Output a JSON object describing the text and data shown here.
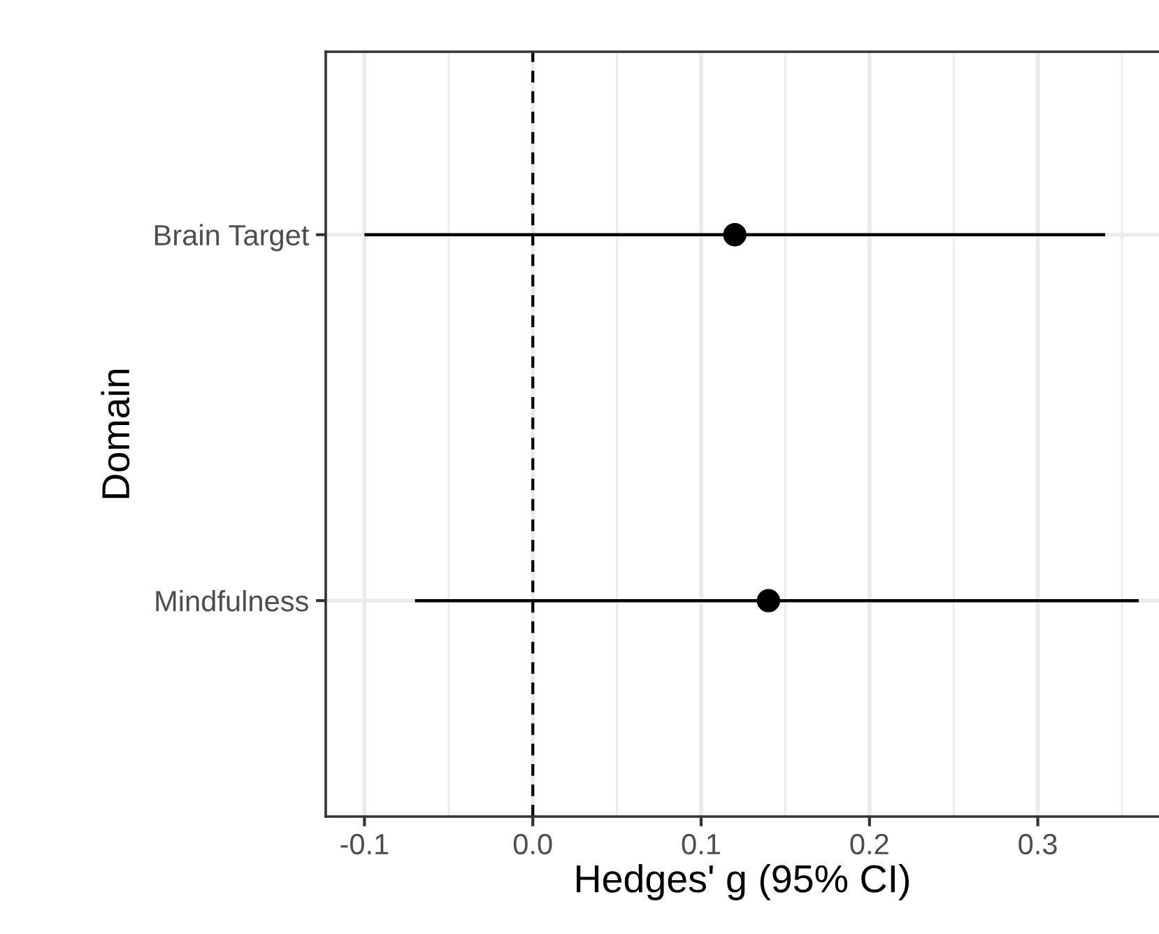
{
  "chart_data": {
    "type": "scatter",
    "orientation": "horizontal",
    "categories": [
      "Brain Target",
      "Mindfulness"
    ],
    "values": [
      0.12,
      0.14
    ],
    "errors": [
      [
        -0.1,
        0.34
      ],
      [
        -0.07,
        0.36
      ]
    ],
    "color": "#000000",
    "marker": "circle",
    "xlabel": "Hedges' g (95% CI)",
    "ylabel": "Domain",
    "xlim": [
      -0.123,
      0.372
    ],
    "xticks": [
      -0.1,
      {
        "value": -0.05,
        "label": null
      },
      {
        "value": 0,
        "label": "0.0"
      },
      {
        "value": 0.05,
        "label": null
      },
      0.1,
      {
        "value": 0.15,
        "label": null
      },
      0.2,
      {
        "value": 0.25,
        "label": null
      },
      0.3,
      {
        "value": 0.35,
        "label": null
      }
    ],
    "ref_lines": [
      {
        "axis": "x",
        "value": 0,
        "label": null,
        "line_style": "dashed",
        "color": "#000000"
      }
    ],
    "grid": true,
    "legend": false
  }
}
